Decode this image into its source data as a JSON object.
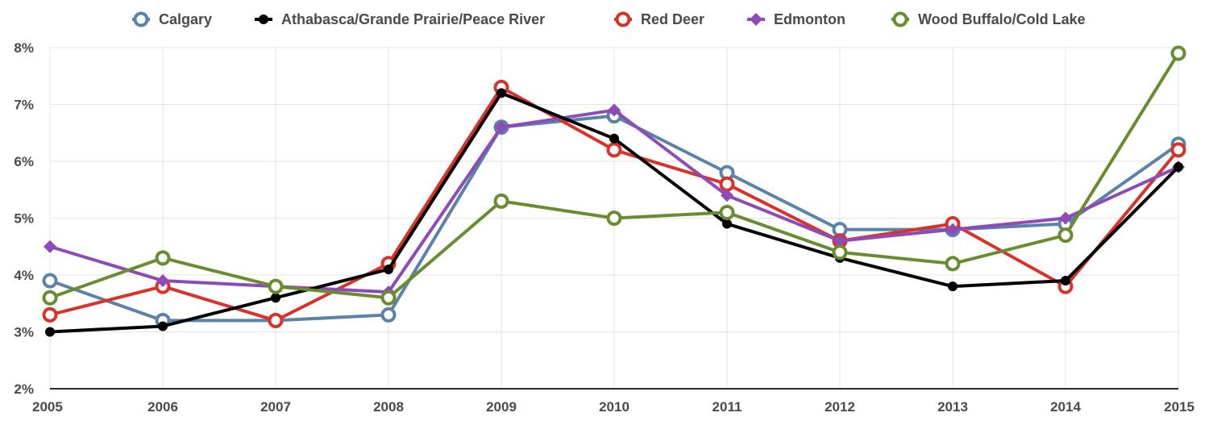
{
  "chart_data": {
    "type": "line",
    "title": "",
    "xlabel": "",
    "ylabel": "",
    "x": [
      "2005",
      "2006",
      "2007",
      "2008",
      "2009",
      "2010",
      "2011",
      "2012",
      "2013",
      "2014",
      "2015"
    ],
    "ylim": [
      2,
      8
    ],
    "yticks": [
      "2%",
      "3%",
      "4%",
      "5%",
      "6%",
      "7%",
      "8%"
    ],
    "grid": true,
    "legend_position": "top",
    "series": [
      {
        "name": "Calgary",
        "color": "#5b82a8",
        "marker": "ring",
        "values": [
          3.9,
          3.2,
          3.2,
          3.3,
          6.6,
          6.8,
          5.8,
          4.8,
          4.8,
          4.9,
          6.3
        ]
      },
      {
        "name": "Athabasca/Grande Prairie/Peace River",
        "color": "#000000",
        "marker": "dot",
        "values": [
          3.0,
          3.1,
          3.6,
          4.1,
          7.2,
          6.4,
          4.9,
          4.3,
          3.8,
          3.9,
          5.9
        ]
      },
      {
        "name": "Red Deer",
        "color": "#d8332a",
        "marker": "ring",
        "values": [
          3.3,
          3.8,
          3.2,
          4.2,
          7.3,
          6.2,
          5.6,
          4.6,
          4.9,
          3.8,
          6.2
        ]
      },
      {
        "name": "Edmonton",
        "color": "#8e4bb8",
        "marker": "diamond",
        "values": [
          4.5,
          3.9,
          3.8,
          3.7,
          6.6,
          6.9,
          5.4,
          4.6,
          4.8,
          5.0,
          5.9
        ]
      },
      {
        "name": "Wood Buffalo/Cold Lake",
        "color": "#6a8c31",
        "marker": "ring",
        "values": [
          3.6,
          4.3,
          3.8,
          3.6,
          5.3,
          5.0,
          5.1,
          4.4,
          4.2,
          4.7,
          7.9
        ]
      }
    ]
  }
}
